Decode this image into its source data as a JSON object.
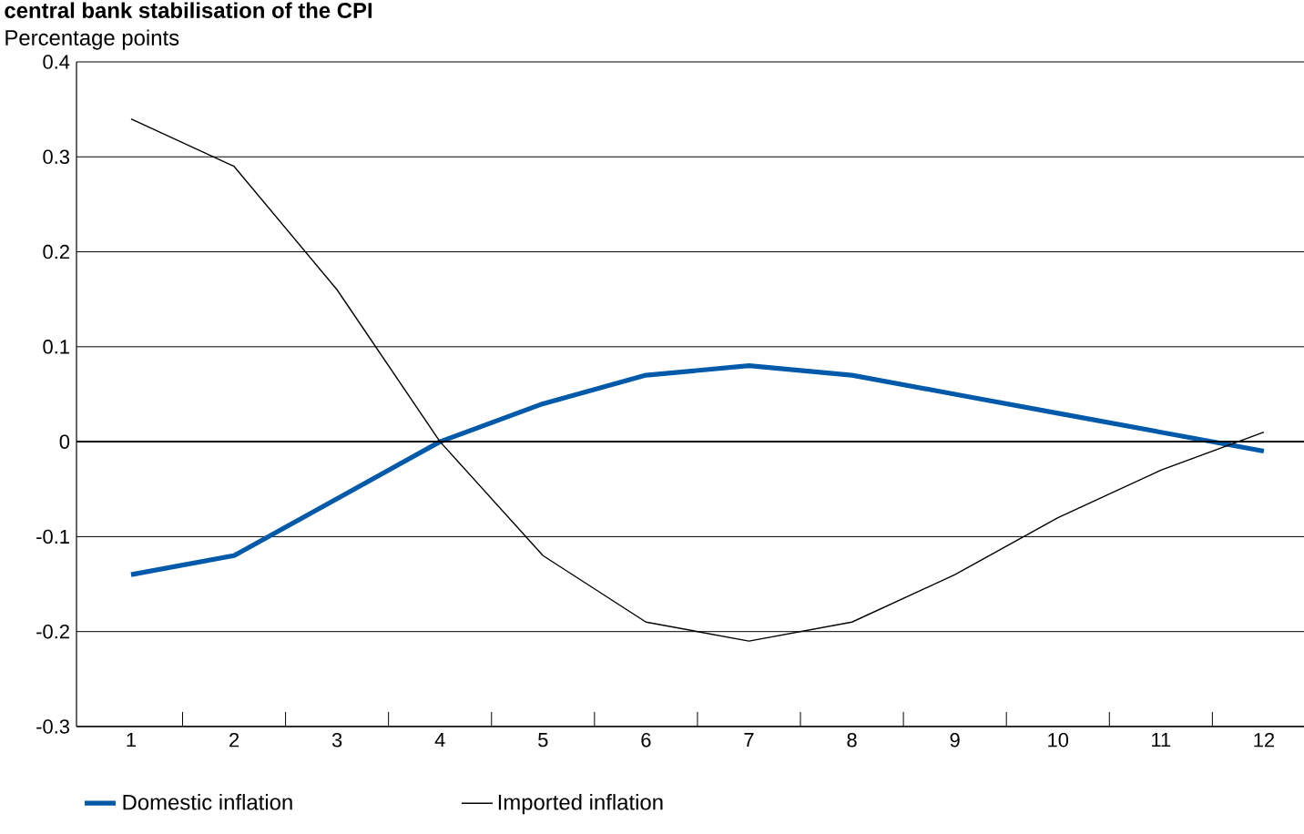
{
  "chart_data": {
    "type": "line",
    "title": "central bank stabilisation of the CPI",
    "ylabel": "Percentage points",
    "categories": [
      "1",
      "2",
      "3",
      "4",
      "5",
      "6",
      "7",
      "8",
      "9",
      "10",
      "11",
      "12"
    ],
    "series": [
      {
        "name": "Domestic inflation",
        "color": "#005aa9",
        "values": [
          -0.14,
          -0.12,
          -0.06,
          0.0,
          0.04,
          0.07,
          0.08,
          0.07,
          0.05,
          0.03,
          0.01,
          -0.01
        ]
      },
      {
        "name": "Imported inflation",
        "color": "#000000",
        "values": [
          0.34,
          0.29,
          0.16,
          0.0,
          -0.12,
          -0.19,
          -0.21,
          -0.19,
          -0.14,
          -0.08,
          -0.03,
          0.01
        ]
      }
    ],
    "ylim": [
      -0.3,
      0.4
    ],
    "yticks": [
      -0.3,
      -0.2,
      -0.1,
      0,
      0.1,
      0.2,
      0.3,
      0.4
    ],
    "grid": "y",
    "legend": "bottom",
    "line_style": "solid",
    "marker": "none"
  }
}
